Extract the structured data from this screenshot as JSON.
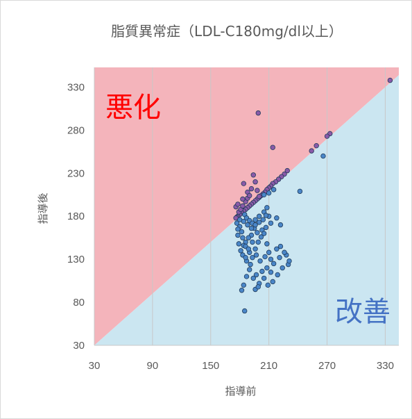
{
  "chart_data": {
    "type": "scatter",
    "title": "脂質異常症（LDL-C180mg/dl以上）",
    "xlabel": "指導前",
    "ylabel": "指導後",
    "xlim": [
      30,
      344
    ],
    "ylim": [
      30,
      353
    ],
    "xticks": [
      30,
      90,
      150,
      210,
      270,
      330
    ],
    "yticks": [
      30,
      80,
      130,
      180,
      230,
      280,
      330
    ],
    "region_labels": {
      "worse": "悪化",
      "better": "改善"
    },
    "colors": {
      "worse_fill": "#f4b4bb",
      "better_fill": "#cbe6f1",
      "grid": "#c8c8c8",
      "point_above": "#8a5aa8",
      "point_below": "#4a86c8",
      "point_edge": "#1f3b5a"
    },
    "points": [
      [
        335,
        338
      ],
      [
        273,
        276
      ],
      [
        270,
        273
      ],
      [
        259,
        262
      ],
      [
        254,
        256
      ],
      [
        266,
        250
      ],
      [
        214,
        260
      ],
      [
        199,
        300
      ],
      [
        242,
        209
      ],
      [
        229,
        233
      ],
      [
        226,
        229
      ],
      [
        223,
        226
      ],
      [
        220,
        223
      ],
      [
        217,
        220
      ],
      [
        214,
        218
      ],
      [
        212,
        215
      ],
      [
        210,
        213
      ],
      [
        208,
        211
      ],
      [
        206,
        208
      ],
      [
        204,
        206
      ],
      [
        202,
        204
      ],
      [
        200,
        202
      ],
      [
        198,
        200
      ],
      [
        196,
        198
      ],
      [
        194,
        196
      ],
      [
        192,
        194
      ],
      [
        190,
        192
      ],
      [
        188,
        190
      ],
      [
        186,
        188
      ],
      [
        184,
        186
      ],
      [
        182,
        184
      ],
      [
        180,
        182
      ],
      [
        178,
        180
      ],
      [
        177,
        179
      ],
      [
        176,
        178
      ],
      [
        179,
        185
      ],
      [
        181,
        188
      ],
      [
        183,
        192
      ],
      [
        186,
        197
      ],
      [
        188,
        201
      ],
      [
        192,
        212
      ],
      [
        194,
        228
      ],
      [
        184,
        218
      ],
      [
        188,
        208
      ],
      [
        183,
        200
      ],
      [
        176,
        191
      ],
      [
        178,
        194
      ],
      [
        196,
        220
      ],
      [
        205,
        205
      ],
      [
        210,
        207
      ],
      [
        215,
        211
      ],
      [
        200,
        203
      ],
      [
        198,
        210
      ],
      [
        190,
        204
      ],
      [
        185,
        182
      ],
      [
        187,
        178
      ],
      [
        190,
        175
      ],
      [
        193,
        172
      ],
      [
        196,
        176
      ],
      [
        200,
        180
      ],
      [
        205,
        185
      ],
      [
        208,
        190
      ],
      [
        210,
        180
      ],
      [
        212,
        172
      ],
      [
        218,
        178
      ],
      [
        222,
        170
      ],
      [
        207,
        167
      ],
      [
        203,
        164
      ],
      [
        198,
        161
      ],
      [
        195,
        166
      ],
      [
        192,
        158
      ],
      [
        189,
        155
      ],
      [
        186,
        150
      ],
      [
        184,
        146
      ],
      [
        182,
        162
      ],
      [
        180,
        168
      ],
      [
        178,
        158
      ],
      [
        179,
        148
      ],
      [
        181,
        140
      ],
      [
        183,
        135
      ],
      [
        187,
        128
      ],
      [
        190,
        138
      ],
      [
        193,
        132
      ],
      [
        196,
        142
      ],
      [
        199,
        150
      ],
      [
        202,
        156
      ],
      [
        205,
        160
      ],
      [
        208,
        148
      ],
      [
        210,
        138
      ],
      [
        212,
        130
      ],
      [
        215,
        125
      ],
      [
        218,
        142
      ],
      [
        221,
        132
      ],
      [
        224,
        120
      ],
      [
        228,
        135
      ],
      [
        230,
        124
      ],
      [
        226,
        138
      ],
      [
        222,
        145
      ],
      [
        231,
        128
      ],
      [
        205,
        108
      ],
      [
        200,
        102
      ],
      [
        196,
        95
      ],
      [
        190,
        118
      ],
      [
        187,
        110
      ],
      [
        184,
        100
      ],
      [
        182,
        94
      ],
      [
        185,
        70
      ],
      [
        197,
        112
      ],
      [
        203,
        116
      ],
      [
        208,
        120
      ],
      [
        212,
        115
      ],
      [
        219,
        112
      ],
      [
        194,
        108
      ],
      [
        191,
        124
      ],
      [
        186,
        132
      ],
      [
        183,
        155
      ],
      [
        178,
        165
      ],
      [
        177,
        172
      ],
      [
        180,
        176
      ],
      [
        184,
        174
      ],
      [
        188,
        170
      ],
      [
        192,
        166
      ],
      [
        196,
        170
      ],
      [
        200,
        173
      ],
      [
        204,
        176
      ],
      [
        207,
        181
      ],
      [
        186,
        145
      ],
      [
        189,
        142
      ],
      [
        193,
        150
      ],
      [
        197,
        135
      ],
      [
        201,
        128
      ],
      [
        206,
        133
      ],
      [
        209,
        100
      ],
      [
        214,
        104
      ],
      [
        199,
        98
      ]
    ]
  }
}
